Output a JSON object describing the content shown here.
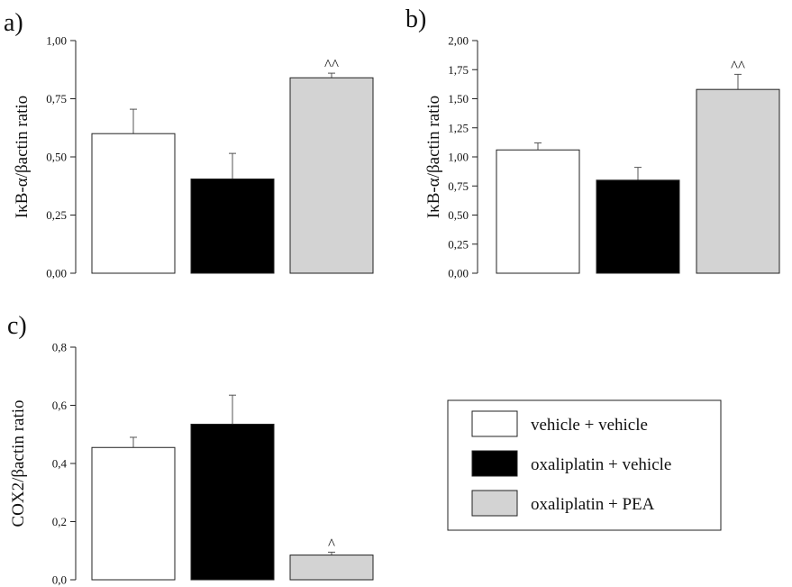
{
  "legend": {
    "entries": [
      {
        "label": "vehicle + vehicle",
        "color": "#ffffff"
      },
      {
        "label": "oxaliplatin + vehicle",
        "color": "#000000"
      },
      {
        "label": "oxaliplatin + PEA",
        "color": "#d3d3d3"
      }
    ]
  },
  "chart_data": [
    {
      "panel": "a)",
      "type": "bar",
      "ylabel": "IκB-α/βactin ratio",
      "ylim": [
        0,
        1.0
      ],
      "yticks": [
        "0,00",
        "0,25",
        "0,50",
        "0,75",
        "1,00"
      ],
      "tick_values": [
        0,
        0.25,
        0.5,
        0.75,
        1.0
      ],
      "values": [
        0.6,
        0.405,
        0.84
      ],
      "errors": [
        0.105,
        0.11,
        0.02
      ],
      "colors": [
        "#ffffff",
        "#000000",
        "#d3d3d3"
      ],
      "significance": [
        "",
        "",
        "^^"
      ]
    },
    {
      "panel": "b)",
      "type": "bar",
      "ylabel": "IκB-α/βactin ratio",
      "ylim": [
        0,
        2.0
      ],
      "yticks": [
        "0,00",
        "0,25",
        "0,50",
        "0,75",
        "1,00",
        "1,25",
        "1,50",
        "1,75",
        "2,00"
      ],
      "tick_values": [
        0,
        0.25,
        0.5,
        0.75,
        1.0,
        1.25,
        1.5,
        1.75,
        2.0
      ],
      "values": [
        1.06,
        0.8,
        1.58
      ],
      "errors": [
        0.06,
        0.11,
        0.13
      ],
      "colors": [
        "#ffffff",
        "#000000",
        "#d3d3d3"
      ],
      "significance": [
        "",
        "",
        "^^"
      ]
    },
    {
      "panel": "c)",
      "type": "bar",
      "ylabel": "COX2/βactin ratio",
      "ylim": [
        0,
        0.8
      ],
      "yticks": [
        "0,0",
        "0,2",
        "0,4",
        "0,6",
        "0,8"
      ],
      "tick_values": [
        0,
        0.2,
        0.4,
        0.6,
        0.8
      ],
      "values": [
        0.455,
        0.535,
        0.085
      ],
      "errors": [
        0.035,
        0.1,
        0.01
      ],
      "colors": [
        "#ffffff",
        "#000000",
        "#d3d3d3"
      ],
      "significance": [
        "",
        "",
        "^"
      ]
    }
  ]
}
